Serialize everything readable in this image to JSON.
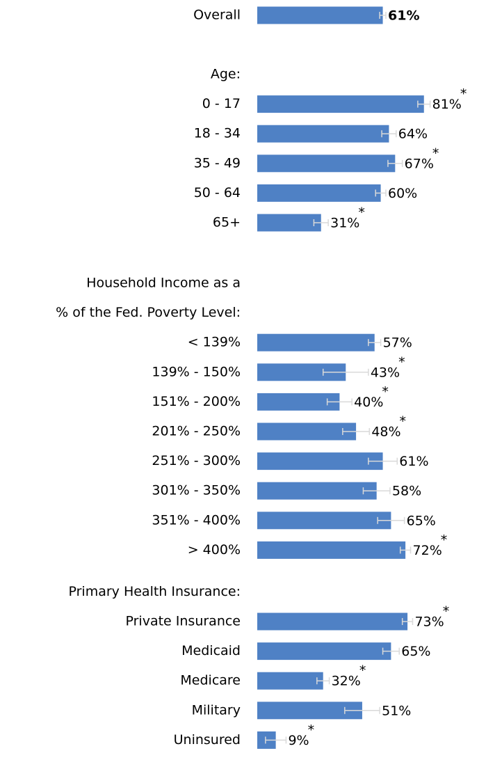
{
  "chart_data": {
    "type": "bar",
    "orientation": "horizontal",
    "color": "#4f81c5",
    "error_color": "#d9d9d9",
    "xlim": [
      0,
      100
    ],
    "groups": [
      {
        "title": [],
        "bold_labels": true,
        "categories": [
          "Overall"
        ],
        "values": [
          61
        ],
        "errors": [
          1.5
        ],
        "value_labels": [
          "61%"
        ],
        "label_colors": [
          "#000000"
        ],
        "markers": [
          null
        ]
      },
      {
        "title": [
          "Age:"
        ],
        "categories": [
          "0 - 17",
          "18 - 34",
          "35 - 49",
          "50 - 64",
          "65+"
        ],
        "values": [
          81,
          64,
          67,
          60,
          31
        ],
        "errors": [
          3,
          3.5,
          3.5,
          2.5,
          3.5
        ],
        "value_labels": [
          "81%",
          "64%",
          "67%",
          "60%",
          "31%"
        ],
        "label_colors": [
          "#70ad47",
          "#000000",
          "#70ad47",
          "#000000",
          "#f0962a"
        ],
        "markers": [
          "*",
          null,
          "*",
          null,
          "*"
        ]
      },
      {
        "title": [
          "Household Income as a",
          "% of the Fed. Poverty Level:"
        ],
        "categories": [
          "< 139%",
          "139% - 150%",
          "151% - 200%",
          "201% - 250%",
          "251% - 300%",
          "301% - 350%",
          "351% - 400%",
          "> 400%"
        ],
        "values": [
          57,
          43,
          40,
          48,
          61,
          58,
          65,
          72
        ],
        "errors": [
          3,
          11,
          6,
          6.5,
          7,
          6.5,
          6.5,
          2.5
        ],
        "value_labels": [
          "57%",
          "43%",
          "40%",
          "48%",
          "61%",
          "58%",
          "65%",
          "72%"
        ],
        "label_colors": [
          "#000000",
          "#f0962a",
          "#f0962a",
          "#f0962a",
          "#000000",
          "#000000",
          "#000000",
          "#70ad47"
        ],
        "markers": [
          null,
          "*",
          "*",
          "*",
          null,
          null,
          null,
          "*"
        ]
      },
      {
        "title": [
          "Primary Health Insurance:"
        ],
        "categories": [
          "Private Insurance",
          "Medicaid",
          "Medicare",
          "Military",
          "Uninsured"
        ],
        "values": [
          73,
          65,
          32,
          51,
          9
        ],
        "errors": [
          2.5,
          4,
          3,
          8.5,
          5
        ],
        "value_labels": [
          "73%",
          "65%",
          "32%",
          "51%",
          "9%"
        ],
        "label_colors": [
          "#70ad47",
          "#000000",
          "#f0962a",
          "#000000",
          "#f0962a"
        ],
        "markers": [
          "*",
          null,
          "*",
          null,
          "*"
        ]
      }
    ]
  }
}
